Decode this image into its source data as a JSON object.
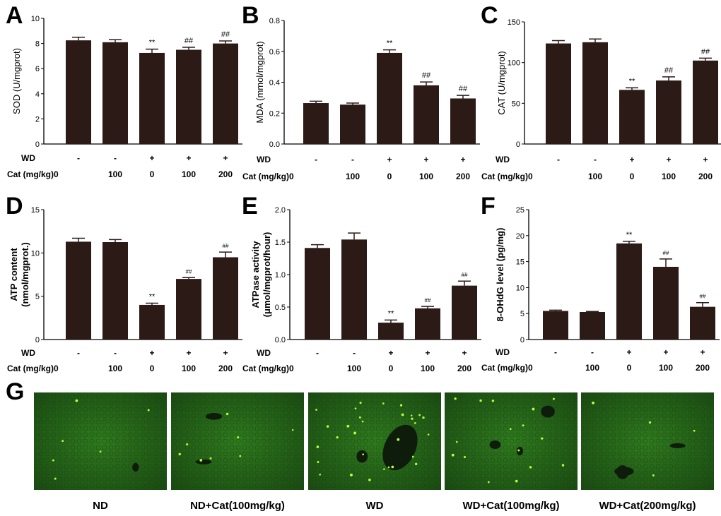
{
  "colors": {
    "bar": "#2b1a16",
    "axis": "#000000",
    "micro_base": "#1f5a15",
    "micro_dot": "#b6ff3a",
    "micro_dark": "#0d1c0b"
  },
  "chart_data": [
    {
      "panel": "A",
      "type": "bar",
      "ylabel": "SOD (U/mgprot)",
      "ylabel_bold": false,
      "ylim": [
        0,
        10
      ],
      "yticks": [
        "0",
        "2",
        "4",
        "6",
        "8",
        "10"
      ],
      "rows": {
        "wd_label": "WD",
        "cat_label": "Cat (mg/kg)",
        "wd": [
          "-",
          "-",
          "+",
          "+",
          "+"
        ],
        "cat": [
          "0",
          "100",
          "0",
          "100",
          "200"
        ]
      },
      "values": [
        8.25,
        8.1,
        7.25,
        7.5,
        8.0
      ],
      "errors": [
        0.25,
        0.2,
        0.3,
        0.2,
        0.2
      ],
      "significance": [
        "",
        "",
        "**",
        "##",
        "##"
      ],
      "sig_small": false
    },
    {
      "panel": "B",
      "type": "bar",
      "ylabel": "MDA (mmol/mgprot)",
      "ylabel_bold": false,
      "ylim": [
        0,
        0.8
      ],
      "yticks": [
        "0.0",
        "0.2",
        "0.4",
        "0.6",
        "0.8"
      ],
      "rows": {
        "wd_label": "WD",
        "cat_label": "Cat (mg/kg)",
        "wd": [
          "-",
          "-",
          "+",
          "+",
          "+"
        ],
        "cat": [
          "0",
          "100",
          "0",
          "100",
          "200"
        ]
      },
      "values": [
        0.265,
        0.255,
        0.59,
        0.38,
        0.295
      ],
      "errors": [
        0.012,
        0.01,
        0.02,
        0.022,
        0.02
      ],
      "significance": [
        "",
        "",
        "**",
        "##",
        "##"
      ],
      "sig_small": false
    },
    {
      "panel": "C",
      "type": "bar",
      "ylabel": "CAT (U/mgprot)",
      "ylabel_bold": false,
      "ylim": [
        0,
        150
      ],
      "yticks": [
        "0",
        "50",
        "100",
        "150"
      ],
      "rows": {
        "wd_label": "WD",
        "cat_label": "Cat (mg/kg)",
        "wd": [
          "-",
          "-",
          "+",
          "+",
          "+"
        ],
        "cat": [
          "0",
          "100",
          "0",
          "100",
          "200"
        ]
      },
      "values": [
        123.5,
        125.0,
        66.5,
        78.0,
        102.5
      ],
      "errors": [
        3.5,
        4.0,
        2.5,
        4.5,
        3.0
      ],
      "significance": [
        "",
        "",
        "**",
        "##",
        "##"
      ],
      "sig_small": false
    },
    {
      "panel": "D",
      "type": "bar",
      "ylabel": "ATP content",
      "ylabel2": "(nmol/mgprot.)",
      "ylabel_bold": true,
      "ylim": [
        0,
        15
      ],
      "yticks": [
        "0",
        "5",
        "10",
        "15"
      ],
      "rows": {
        "wd_label": "WD",
        "cat_label": "Cat (mg/kg)",
        "wd": [
          "-",
          "-",
          "+",
          "+",
          "+"
        ],
        "cat": [
          "0",
          "100",
          "0",
          "100",
          "200"
        ]
      },
      "values": [
        11.3,
        11.25,
        4.0,
        7.0,
        9.5
      ],
      "errors": [
        0.4,
        0.3,
        0.2,
        0.15,
        0.6
      ],
      "significance": [
        "",
        "",
        "**",
        "##",
        "##"
      ],
      "sig_small": true
    },
    {
      "panel": "E",
      "type": "bar",
      "ylabel": "ATPase activity",
      "ylabel2": "(μmol/mgprot/hour)",
      "ylabel_bold": true,
      "ylim": [
        0,
        2.0
      ],
      "yticks": [
        "0.0",
        "0.5",
        "1.0",
        "1.5",
        "2.0"
      ],
      "rows": {
        "wd_label": "WD",
        "cat_label": "Cat (mg/kg)",
        "wd": [
          "-",
          "-",
          "+",
          "+",
          "+"
        ],
        "cat": [
          "0",
          "100",
          "0",
          "100",
          "200"
        ]
      },
      "values": [
        1.41,
        1.54,
        0.26,
        0.48,
        0.83
      ],
      "errors": [
        0.05,
        0.1,
        0.04,
        0.03,
        0.07
      ],
      "significance": [
        "",
        "",
        "**",
        "##",
        "##"
      ],
      "sig_small": true
    },
    {
      "panel": "F",
      "type": "bar",
      "ylabel": "8-OHdG level (pg/mg)",
      "ylabel_bold": true,
      "ylim": [
        0,
        25
      ],
      "yticks": [
        "0",
        "5",
        "10",
        "15",
        "20",
        "25"
      ],
      "rows": {
        "wd_label": "WD",
        "cat_label": "Cat (mg/kg)",
        "wd": [
          "-",
          "-",
          "+",
          "+",
          "+"
        ],
        "cat": [
          "0",
          "100",
          "0",
          "100",
          "200"
        ]
      },
      "values": [
        5.5,
        5.3,
        18.5,
        14.0,
        6.3
      ],
      "errors": [
        0.15,
        0.1,
        0.4,
        1.5,
        0.8
      ],
      "significance": [
        "",
        "",
        "**",
        "##",
        "##"
      ],
      "sig_small": true
    }
  ],
  "panel_g": {
    "letter": "G",
    "captions": [
      "ND",
      "ND+Cat(100mg/kg)",
      "WD",
      "WD+Cat(100mg/kg)",
      "WD+Cat(200mg/kg)"
    ]
  }
}
